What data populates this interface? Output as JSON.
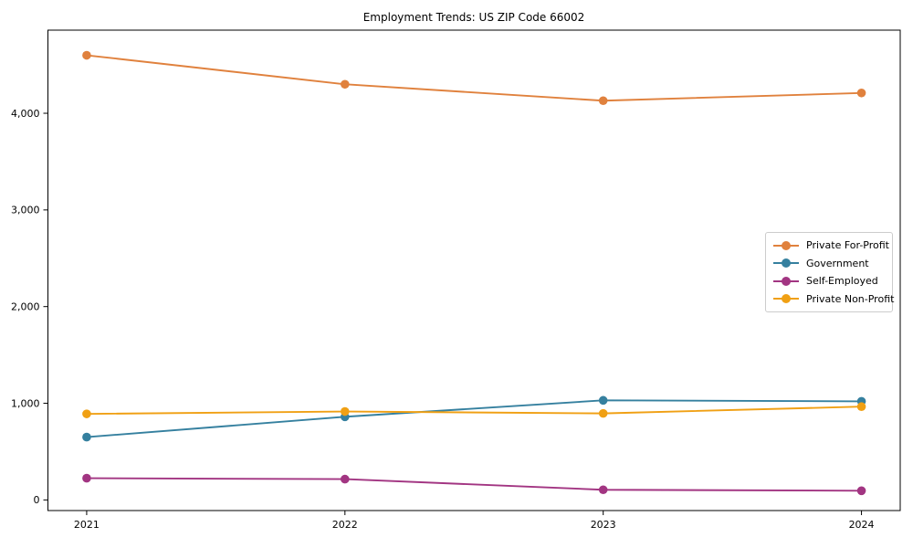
{
  "figure": {
    "background": "#ffffff",
    "spine_color": "#000000",
    "tick_label_color": "#000000"
  },
  "chart_data": {
    "type": "line",
    "title": "Employment Trends: US ZIP Code 66002",
    "xlabel": "",
    "ylabel": "",
    "grid": false,
    "legend_position": "center-right",
    "x": [
      2021,
      2022,
      2023,
      2024
    ],
    "x_tick_labels": [
      "2021",
      "2022",
      "2023",
      "2024"
    ],
    "y_ticks": [
      0,
      1000,
      2000,
      3000,
      4000
    ],
    "y_tick_labels": [
      "0",
      "1,000",
      "2,000",
      "3,000",
      "4,000"
    ],
    "xlim": [
      2020.85,
      2024.15
    ],
    "ylim": [
      -110,
      4860
    ],
    "series": [
      {
        "name": "Private For-Profit",
        "color": "#e0813d",
        "values": [
          4600,
          4300,
          4130,
          4210
        ]
      },
      {
        "name": "Government",
        "color": "#35809f",
        "values": [
          650,
          860,
          1030,
          1020
        ]
      },
      {
        "name": "Self-Employed",
        "color": "#a23582",
        "values": [
          225,
          215,
          105,
          95
        ]
      },
      {
        "name": "Private Non-Profit",
        "color": "#f0a014",
        "values": [
          890,
          915,
          895,
          965
        ]
      }
    ]
  }
}
